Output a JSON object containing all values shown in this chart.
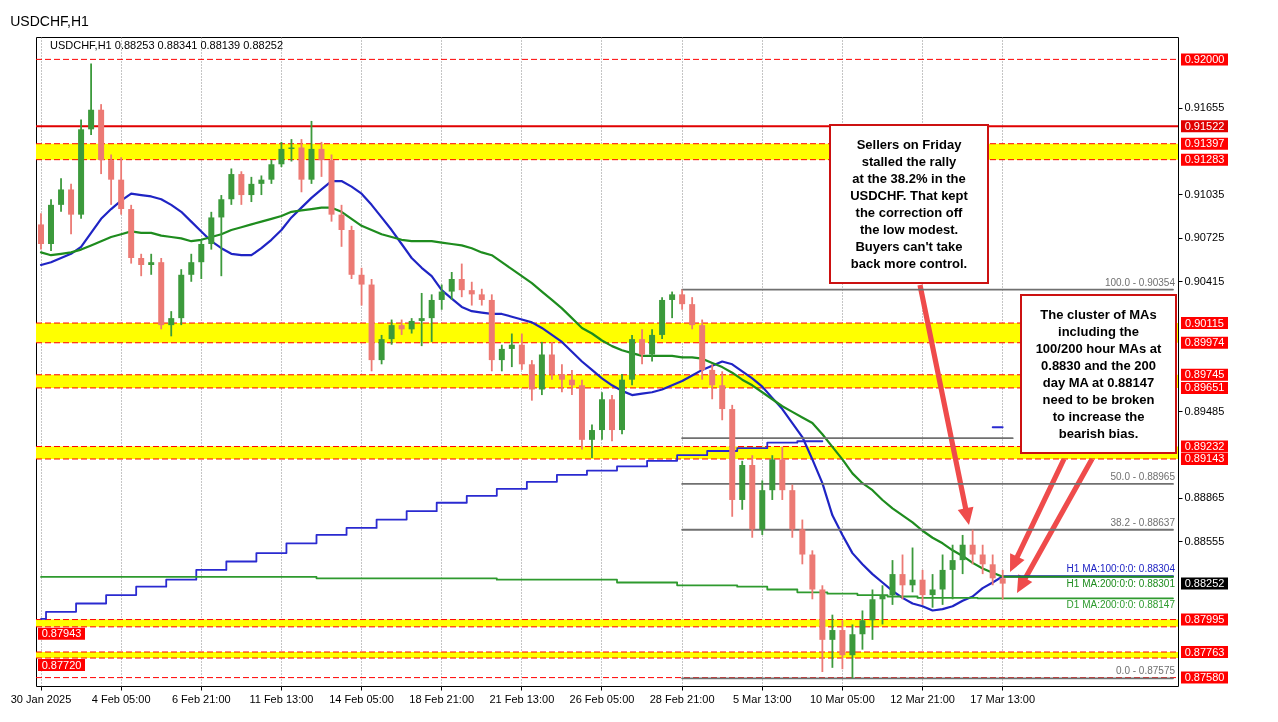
{
  "chart_data": {
    "type": "candlestick",
    "title": "USDCHF,H1",
    "subtitle": "USDCHF,H1  0.88253 0.88341 0.88139 0.88252",
    "categories": [
      "30 Jan 2025",
      null,
      null,
      null,
      null,
      null,
      null,
      null,
      "4 Feb 05:00",
      null,
      null,
      null,
      null,
      null,
      null,
      null,
      "6 Feb 21:00",
      null,
      null,
      null,
      null,
      null,
      null,
      null,
      "11 Feb 13:00",
      null,
      null,
      null,
      null,
      null,
      null,
      null,
      "14 Feb 05:00",
      null,
      null,
      null,
      null,
      null,
      null,
      null,
      "18 Feb 21:00",
      null,
      null,
      null,
      null,
      null,
      null,
      null,
      "21 Feb 13:00",
      null,
      null,
      null,
      null,
      null,
      null,
      null,
      "26 Feb 05:00",
      null,
      null,
      null,
      null,
      null,
      null,
      null,
      "28 Feb 21:00",
      null,
      null,
      null,
      null,
      null,
      null,
      null,
      "5 Mar 13:00",
      null,
      null,
      null,
      null,
      null,
      null,
      null,
      "10 Mar 05:00",
      null,
      null,
      null,
      null,
      null,
      null,
      null,
      "12 Mar 21:00",
      null,
      null,
      null,
      null,
      null,
      null,
      null,
      "17 Mar 13:00",
      null,
      null,
      null,
      null,
      null,
      null,
      null,
      null,
      null,
      null,
      null,
      null,
      null,
      null,
      null,
      null,
      null
    ],
    "ohlc": [
      [
        0.9082,
        0.909,
        0.9064,
        0.9068
      ],
      [
        0.9068,
        0.91,
        0.9063,
        0.9096
      ],
      [
        0.9096,
        0.9115,
        0.9091,
        0.9107
      ],
      [
        0.9107,
        0.9111,
        0.9075,
        0.9089
      ],
      [
        0.9089,
        0.9157,
        0.9086,
        0.915
      ],
      [
        0.915,
        0.9197,
        0.9146,
        0.9164
      ],
      [
        0.9164,
        0.9168,
        0.9118,
        0.9128
      ],
      [
        0.9128,
        0.9132,
        0.9096,
        0.9114
      ],
      [
        0.9114,
        0.913,
        0.9089,
        0.9093
      ],
      [
        0.9093,
        0.9096,
        0.9054,
        0.9058
      ],
      [
        0.9058,
        0.9061,
        0.9045,
        0.9053
      ],
      [
        0.9053,
        0.9061,
        0.9046,
        0.9055
      ],
      [
        0.9055,
        0.9058,
        0.9007,
        0.901
      ],
      [
        0.901,
        0.902,
        0.9002,
        0.9015
      ],
      [
        0.9015,
        0.905,
        0.901,
        0.9046
      ],
      [
        0.9046,
        0.9061,
        0.9041,
        0.9055
      ],
      [
        0.9055,
        0.9071,
        0.9043,
        0.9068
      ],
      [
        0.9068,
        0.9091,
        0.9064,
        0.9087
      ],
      [
        0.9087,
        0.9103,
        0.9045,
        0.91
      ],
      [
        0.91,
        0.9122,
        0.9096,
        0.9118
      ],
      [
        0.9118,
        0.912,
        0.9096,
        0.9103
      ],
      [
        0.9103,
        0.9116,
        0.9098,
        0.9111
      ],
      [
        0.9111,
        0.9117,
        0.9103,
        0.9114
      ],
      [
        0.9114,
        0.9128,
        0.9111,
        0.9125
      ],
      [
        0.9125,
        0.9141,
        0.9123,
        0.9136
      ],
      [
        0.9136,
        0.9143,
        0.9127,
        0.9137
      ],
      [
        0.9137,
        0.9143,
        0.9105,
        0.9114
      ],
      [
        0.9114,
        0.9156,
        0.9111,
        0.9136
      ],
      [
        0.9136,
        0.9141,
        0.9116,
        0.9128
      ],
      [
        0.9128,
        0.9132,
        0.9084,
        0.9089
      ],
      [
        0.9089,
        0.9096,
        0.9066,
        0.9078
      ],
      [
        0.9078,
        0.9081,
        0.9043,
        0.9046
      ],
      [
        0.9046,
        0.9051,
        0.9024,
        0.9039
      ],
      [
        0.9039,
        0.9043,
        0.8977,
        0.8985
      ],
      [
        0.8985,
        0.9003,
        0.8982,
        0.9
      ],
      [
        0.9,
        0.9014,
        0.8996,
        0.901
      ],
      [
        0.901,
        0.9014,
        0.9003,
        0.9007
      ],
      [
        0.9007,
        0.9015,
        0.9004,
        0.9013
      ],
      [
        0.9013,
        0.9033,
        0.8995,
        0.9015
      ],
      [
        0.9015,
        0.9032,
        0.8998,
        0.9028
      ],
      [
        0.9028,
        0.9039,
        0.9021,
        0.9034
      ],
      [
        0.9034,
        0.9048,
        0.9028,
        0.9043
      ],
      [
        0.9043,
        0.9054,
        0.903,
        0.9035
      ],
      [
        0.9035,
        0.9041,
        0.9024,
        0.9032
      ],
      [
        0.9032,
        0.9036,
        0.9024,
        0.9028
      ],
      [
        0.9028,
        0.9032,
        0.8977,
        0.8985
      ],
      [
        0.8985,
        0.8996,
        0.8977,
        0.8993
      ],
      [
        0.8993,
        0.9004,
        0.898,
        0.8996
      ],
      [
        0.8996,
        0.9004,
        0.8978,
        0.8982
      ],
      [
        0.8982,
        0.8985,
        0.8956,
        0.8964
      ],
      [
        0.8964,
        0.8998,
        0.896,
        0.8989
      ],
      [
        0.8989,
        0.8998,
        0.8971,
        0.8975
      ],
      [
        0.8975,
        0.8982,
        0.8962,
        0.8971
      ],
      [
        0.8971,
        0.8978,
        0.896,
        0.8967
      ],
      [
        0.8967,
        0.8971,
        0.8921,
        0.8928
      ],
      [
        0.8928,
        0.8939,
        0.8915,
        0.8935
      ],
      [
        0.8935,
        0.8962,
        0.8928,
        0.8957
      ],
      [
        0.8957,
        0.896,
        0.8927,
        0.8935
      ],
      [
        0.8935,
        0.8975,
        0.8932,
        0.8971
      ],
      [
        0.8971,
        0.9003,
        0.8967,
        0.9
      ],
      [
        0.9,
        0.9007,
        0.8982,
        0.8989
      ],
      [
        0.8989,
        0.9007,
        0.8984,
        0.9003
      ],
      [
        0.9003,
        0.903,
        0.9,
        0.9028
      ],
      [
        0.9028,
        0.9034,
        0.9015,
        0.9032
      ],
      [
        0.9032,
        0.90354,
        0.9021,
        0.9025
      ],
      [
        0.9025,
        0.903,
        0.9007,
        0.901
      ],
      [
        0.901,
        0.9014,
        0.8971,
        0.8978
      ],
      [
        0.8978,
        0.8982,
        0.8957,
        0.8967
      ],
      [
        0.8967,
        0.8977,
        0.8942,
        0.895
      ],
      [
        0.895,
        0.8953,
        0.8873,
        0.8885
      ],
      [
        0.8885,
        0.8913,
        0.8878,
        0.891
      ],
      [
        0.891,
        0.8917,
        0.8858,
        0.8864
      ],
      [
        0.8864,
        0.8899,
        0.886,
        0.8892
      ],
      [
        0.8892,
        0.8917,
        0.8885,
        0.8914
      ],
      [
        0.8914,
        0.8923,
        0.8885,
        0.8892
      ],
      [
        0.8892,
        0.8896,
        0.8858,
        0.8864
      ],
      [
        0.8864,
        0.8871,
        0.8839,
        0.8846
      ],
      [
        0.8846,
        0.8849,
        0.8814,
        0.8821
      ],
      [
        0.8821,
        0.8824,
        0.8762,
        0.8785
      ],
      [
        0.8785,
        0.8803,
        0.8765,
        0.8792
      ],
      [
        0.8792,
        0.8799,
        0.8764,
        0.8774
      ],
      [
        0.8774,
        0.8796,
        0.87575,
        0.8789
      ],
      [
        0.8789,
        0.8806,
        0.8778,
        0.8799
      ],
      [
        0.8799,
        0.8821,
        0.8785,
        0.8814
      ],
      [
        0.8814,
        0.8824,
        0.8796,
        0.8817
      ],
      [
        0.8817,
        0.8842,
        0.881,
        0.8832
      ],
      [
        0.8832,
        0.8846,
        0.8814,
        0.8824
      ],
      [
        0.8824,
        0.8851,
        0.8819,
        0.8828
      ],
      [
        0.8828,
        0.8835,
        0.881,
        0.8817
      ],
      [
        0.8817,
        0.8832,
        0.8808,
        0.8821
      ],
      [
        0.8821,
        0.8846,
        0.881,
        0.8835
      ],
      [
        0.8835,
        0.8853,
        0.8814,
        0.8842
      ],
      [
        0.8842,
        0.886,
        0.8832,
        0.8853
      ],
      [
        0.8853,
        0.88637,
        0.8839,
        0.8846
      ],
      [
        0.8846,
        0.8853,
        0.8832,
        0.8839
      ],
      [
        0.8839,
        0.8846,
        0.8824,
        0.8829
      ],
      [
        0.8829,
        0.8835,
        0.88139,
        0.88252
      ],
      null,
      null,
      null,
      null,
      null,
      null,
      null,
      null,
      null,
      null,
      null,
      null,
      null,
      null,
      null,
      null,
      null
    ],
    "colors": [
      "#ec7a74",
      "#3c9a3c",
      "#3c9a3c",
      "#ec7a74",
      "#3c9a3c",
      "#3c9a3c",
      "#ec7a74",
      "#ec7a74",
      "#ec7a74",
      "#ec7a74",
      "#ec7a74",
      "#3c9a3c",
      "#ec7a74",
      "#3c9a3c",
      "#3c9a3c",
      "#3c9a3c",
      "#3c9a3c",
      "#3c9a3c",
      "#3c9a3c",
      "#3c9a3c",
      "#ec7a74",
      "#3c9a3c",
      "#3c9a3c",
      "#3c9a3c",
      "#3c9a3c",
      "#3c9a3c",
      "#ec7a74",
      "#3c9a3c",
      "#ec7a74",
      "#ec7a74",
      "#ec7a74",
      "#ec7a74",
      "#ec7a74",
      "#ec7a74",
      "#3c9a3c",
      "#3c9a3c",
      "#ec7a74",
      "#3c9a3c",
      "#3c9a3c",
      "#3c9a3c",
      "#3c9a3c",
      "#3c9a3c",
      "#ec7a74",
      "#ec7a74",
      "#ec7a74",
      "#ec7a74",
      "#3c9a3c",
      "#3c9a3c",
      "#ec7a74",
      "#ec7a74",
      "#3c9a3c",
      "#ec7a74",
      "#ec7a74",
      "#ec7a74",
      "#ec7a74",
      "#3c9a3c",
      "#3c9a3c",
      "#ec7a74",
      "#3c9a3c",
      "#3c9a3c",
      "#ec7a74",
      "#3c9a3c",
      "#3c9a3c",
      "#3c9a3c",
      "#ec7a74",
      "#ec7a74",
      "#ec7a74",
      "#ec7a74",
      "#ec7a74",
      "#ec7a74",
      "#3c9a3c",
      "#ec7a74",
      "#3c9a3c",
      "#3c9a3c",
      "#ec7a74",
      "#ec7a74",
      "#ec7a74",
      "#ec7a74",
      "#ec7a74",
      "#3c9a3c",
      "#ec7a74",
      "#3c9a3c",
      "#3c9a3c",
      "#3c9a3c",
      "#3c9a3c",
      "#3c9a3c",
      "#ec7a74",
      "#3c9a3c",
      "#ec7a74",
      "#3c9a3c",
      "#3c9a3c",
      "#3c9a3c",
      "#3c9a3c",
      "#ec7a74",
      "#ec7a74",
      "#ec7a74",
      "#ec7a74",
      null,
      null,
      null,
      null,
      null,
      null,
      null,
      null,
      null,
      null,
      null,
      null,
      null,
      null,
      null,
      null,
      null
    ],
    "series": [
      {
        "type": "line",
        "name": "H1 MA:100:0:0: 0.88304",
        "color": "#1f24c4",
        "values": [
          0.9053,
          0.9055,
          0.9058,
          0.9061,
          0.9066,
          0.9076,
          0.9086,
          0.9093,
          0.9099,
          0.9104,
          0.9103,
          0.9102,
          0.91,
          0.9096,
          0.9091,
          0.9084,
          0.9077,
          0.907,
          0.9065,
          0.9061,
          0.906,
          0.906,
          0.9065,
          0.9071,
          0.9078,
          0.9087,
          0.9094,
          0.9101,
          0.9107,
          0.9113,
          0.9113,
          0.9109,
          0.9104,
          0.9096,
          0.9087,
          0.9078,
          0.9068,
          0.9058,
          0.9051,
          0.9045,
          0.9035,
          0.9029,
          0.9023,
          0.902,
          0.9019,
          0.9018,
          0.9018,
          0.9016,
          0.9014,
          0.9012,
          0.9008,
          0.9003,
          0.8998,
          0.8991,
          0.8984,
          0.8978,
          0.8972,
          0.8967,
          0.8963,
          0.896,
          0.8961,
          0.8962,
          0.8964,
          0.8967,
          0.897,
          0.8974,
          0.8978,
          0.8981,
          0.8984,
          0.8982,
          0.8977,
          0.8972,
          0.8966,
          0.8958,
          0.895,
          0.894,
          0.893,
          0.8914,
          0.8897,
          0.8874,
          0.886,
          0.8847,
          0.8839,
          0.8832,
          0.8826,
          0.882,
          0.8815,
          0.8811,
          0.8809,
          0.8806,
          0.8807,
          0.8809,
          0.8813,
          0.8816,
          0.8822,
          0.8826,
          0.88304,
          0.88304,
          0.88304,
          0.88304,
          0.88304,
          0.88304,
          0.88304,
          0.88304,
          0.88304,
          0.88304,
          0.88304,
          0.88304,
          0.88304,
          0.88304,
          0.88304,
          0.88304,
          0.88304,
          0.88304
        ]
      },
      {
        "type": "line",
        "name": "H1 MA:200:0:0: 0.88301",
        "color": "#1e8c1e",
        "values": [
          0.9062,
          0.906,
          0.9061,
          0.9062,
          0.9064,
          0.9067,
          0.907,
          0.9073,
          0.9075,
          0.9077,
          0.9076,
          0.9076,
          0.9074,
          0.9073,
          0.9072,
          0.907,
          0.9071,
          0.9073,
          0.9075,
          0.9078,
          0.908,
          0.9082,
          0.9084,
          0.9086,
          0.9088,
          0.9091,
          0.9092,
          0.9093,
          0.9094,
          0.9094,
          0.9091,
          0.9086,
          0.9081,
          0.9078,
          0.9075,
          0.9073,
          0.9071,
          0.907,
          0.907,
          0.907,
          0.9069,
          0.9068,
          0.9067,
          0.9065,
          0.9062,
          0.906,
          0.9055,
          0.905,
          0.9045,
          0.904,
          0.9034,
          0.9028,
          0.9022,
          0.9015,
          0.9008,
          0.9004,
          0.8999,
          0.8995,
          0.8992,
          0.899,
          0.8988,
          0.8988,
          0.8988,
          0.8988,
          0.8987,
          0.8987,
          0.8986,
          0.8983,
          0.898,
          0.8976,
          0.8971,
          0.8967,
          0.8962,
          0.8957,
          0.8952,
          0.8948,
          0.8944,
          0.894,
          0.8932,
          0.8923,
          0.8914,
          0.8904,
          0.8897,
          0.8892,
          0.8885,
          0.8879,
          0.8874,
          0.8869,
          0.8863,
          0.8858,
          0.8854,
          0.8849,
          0.8845,
          0.884,
          0.8836,
          0.8833,
          0.88301,
          0.88301,
          0.88301,
          0.88301,
          0.88301,
          0.88301,
          0.88301,
          0.88301,
          0.88301,
          0.88301,
          0.88301,
          0.88301,
          0.88301,
          0.88301,
          0.88301,
          0.88301,
          0.88301,
          0.88301
        ]
      },
      {
        "type": "step",
        "color": "#2a2ad0",
        "values": [
          0.88,
          0.8805,
          0.8805,
          0.8805,
          0.8811,
          0.8811,
          0.8811,
          0.8817,
          0.8817,
          0.8817,
          0.8823,
          0.8823,
          0.8823,
          0.8828,
          0.8828,
          0.8828,
          0.8835,
          0.8835,
          0.8835,
          0.8841,
          0.8841,
          0.8841,
          0.8847,
          0.8847,
          0.8847,
          0.8854,
          0.8854,
          0.8854,
          0.886,
          0.886,
          0.886,
          0.8865,
          0.8865,
          0.8865,
          0.8871,
          0.8871,
          0.8871,
          0.8877,
          0.8877,
          0.8877,
          0.8883,
          0.8883,
          0.8883,
          0.8888,
          0.8888,
          0.8888,
          0.8893,
          0.8893,
          0.8893,
          0.8898,
          0.8898,
          0.8898,
          0.8903,
          0.8903,
          0.8903,
          0.8906,
          0.8906,
          0.8906,
          0.8909,
          0.8909,
          0.8909,
          0.8913,
          0.8913,
          0.8913,
          0.8917,
          0.8917,
          0.8917,
          0.892,
          0.892,
          0.892,
          0.8922,
          0.8922,
          0.8922,
          0.8926,
          0.8926,
          0.8926,
          0.8927,
          0.8927,
          0.8927,
          null,
          null,
          null,
          null,
          null,
          null,
          null,
          null,
          null,
          null,
          null,
          null,
          null,
          null,
          null,
          null,
          0.8937,
          0.8937,
          null,
          null,
          null,
          null,
          null,
          null,
          null,
          null,
          null,
          null,
          null,
          null,
          null,
          null,
          null,
          null,
          null
        ]
      },
      {
        "type": "step",
        "name": "D1 MA:200:0:0: 0.88147",
        "color": "#2e9a2e",
        "values": [
          0.883,
          0.883,
          0.883,
          0.883,
          0.883,
          0.883,
          0.883,
          0.883,
          0.883,
          0.883,
          0.883,
          0.883,
          0.883,
          0.883,
          0.883,
          0.883,
          0.883,
          0.883,
          0.883,
          0.883,
          0.883,
          0.883,
          0.883,
          0.883,
          0.883,
          0.883,
          0.883,
          0.883,
          0.8829,
          0.8829,
          0.8829,
          0.8829,
          0.8829,
          0.8829,
          0.8829,
          0.8829,
          0.8829,
          0.8829,
          0.8829,
          0.8829,
          0.8829,
          0.8829,
          0.8829,
          0.8829,
          0.8829,
          0.8829,
          0.8828,
          0.8828,
          0.8828,
          0.8828,
          0.8828,
          0.8828,
          0.8828,
          0.8828,
          0.8828,
          0.8828,
          0.8828,
          0.8828,
          0.8826,
          0.8826,
          0.8826,
          0.8826,
          0.8826,
          0.8826,
          0.8824,
          0.8824,
          0.8824,
          0.8824,
          0.8824,
          0.8824,
          0.8823,
          0.8823,
          0.8823,
          0.8821,
          0.8821,
          0.8821,
          0.8819,
          0.8819,
          0.8819,
          0.8818,
          0.8818,
          0.8818,
          0.8817,
          0.8817,
          0.8817,
          0.8816,
          0.8816,
          0.8816,
          0.8815,
          0.8815,
          0.8815,
          0.8815,
          0.8815,
          0.8815,
          0.88147,
          0.88147,
          0.88147,
          0.88147,
          0.88147,
          0.88147,
          0.88147,
          0.88147,
          0.88147,
          0.88147,
          0.88147,
          0.88147,
          0.88147,
          0.88147,
          0.88147,
          0.88147,
          0.88147,
          0.88147,
          0.88147,
          0.88147
        ]
      },
      {
        "type": "step",
        "name": "100.0 - 0.90354",
        "color": "#707070",
        "values": [
          null,
          null,
          null,
          null,
          null,
          null,
          null,
          null,
          null,
          null,
          null,
          null,
          null,
          null,
          null,
          null,
          null,
          null,
          null,
          null,
          null,
          null,
          null,
          null,
          null,
          null,
          null,
          null,
          null,
          null,
          null,
          null,
          null,
          null,
          null,
          null,
          null,
          null,
          null,
          null,
          null,
          null,
          null,
          null,
          null,
          null,
          null,
          null,
          null,
          null,
          null,
          null,
          null,
          null,
          null,
          null,
          null,
          null,
          null,
          null,
          null,
          null,
          null,
          null,
          0.90354,
          0.90354,
          0.90354,
          0.90354,
          0.90354,
          0.90354,
          0.90354,
          0.90354,
          0.90354,
          0.90354,
          0.90354,
          0.90354,
          0.90354,
          0.90354,
          0.90354,
          0.90354,
          0.90354,
          0.90354,
          0.90354,
          0.90354,
          0.90354,
          0.90354,
          0.90354,
          0.90354,
          0.90354,
          0.90354,
          0.90354,
          0.90354,
          0.90354,
          0.90354,
          0.90354,
          0.90354,
          0.90354,
          0.90354,
          0.90354,
          0.90354,
          0.90354,
          0.90354,
          0.90354,
          0.90354,
          0.90354,
          0.90354,
          0.90354,
          0.90354,
          0.90354,
          0.90354,
          0.90354,
          0.90354,
          0.90354,
          0.90354
        ]
      },
      {
        "type": "step",
        "color": "#707070",
        "values": [
          null,
          null,
          null,
          null,
          null,
          null,
          null,
          null,
          null,
          null,
          null,
          null,
          null,
          null,
          null,
          null,
          null,
          null,
          null,
          null,
          null,
          null,
          null,
          null,
          null,
          null,
          null,
          null,
          null,
          null,
          null,
          null,
          null,
          null,
          null,
          null,
          null,
          null,
          null,
          null,
          null,
          null,
          null,
          null,
          null,
          null,
          null,
          null,
          null,
          null,
          null,
          null,
          null,
          null,
          null,
          null,
          null,
          null,
          null,
          null,
          null,
          null,
          null,
          null,
          0.89292,
          0.89292,
          0.89292,
          0.89292,
          0.89292,
          0.89292,
          0.89292,
          0.89292,
          0.89292,
          0.89292,
          0.89292,
          0.89292,
          0.89292,
          0.89292,
          0.89292,
          0.89292,
          0.89292,
          0.89292,
          0.89292,
          0.89292,
          0.89292,
          0.89292,
          0.89292,
          0.89292,
          0.89292,
          0.89292,
          0.89292,
          0.89292,
          0.89292,
          0.89292,
          0.89292,
          0.89292,
          0.89292,
          0.89292,
          null,
          null,
          null,
          null,
          null,
          null,
          null,
          null,
          null,
          null,
          null,
          null,
          null,
          null,
          null,
          null
        ]
      },
      {
        "type": "step",
        "name": "50.0 - 0.88965",
        "color": "#707070",
        "values": [
          null,
          null,
          null,
          null,
          null,
          null,
          null,
          null,
          null,
          null,
          null,
          null,
          null,
          null,
          null,
          null,
          null,
          null,
          null,
          null,
          null,
          null,
          null,
          null,
          null,
          null,
          null,
          null,
          null,
          null,
          null,
          null,
          null,
          null,
          null,
          null,
          null,
          null,
          null,
          null,
          null,
          null,
          null,
          null,
          null,
          null,
          null,
          null,
          null,
          null,
          null,
          null,
          null,
          null,
          null,
          null,
          null,
          null,
          null,
          null,
          null,
          null,
          null,
          null,
          0.88965,
          0.88965,
          0.88965,
          0.88965,
          0.88965,
          0.88965,
          0.88965,
          0.88965,
          0.88965,
          0.88965,
          0.88965,
          0.88965,
          0.88965,
          0.88965,
          0.88965,
          0.88965,
          0.88965,
          0.88965,
          0.88965,
          0.88965,
          0.88965,
          0.88965,
          0.88965,
          0.88965,
          0.88965,
          0.88965,
          0.88965,
          0.88965,
          0.88965,
          0.88965,
          0.88965,
          0.88965,
          0.88965,
          0.88965,
          0.88965,
          0.88965,
          0.88965,
          0.88965,
          0.88965,
          0.88965,
          0.88965,
          0.88965,
          0.88965,
          0.88965,
          0.88965,
          0.88965,
          0.88965,
          0.88965,
          0.88965,
          0.88965
        ]
      },
      {
        "type": "step",
        "name": "38.2 - 0.88637",
        "color": "#707070",
        "values": [
          null,
          null,
          null,
          null,
          null,
          null,
          null,
          null,
          null,
          null,
          null,
          null,
          null,
          null,
          null,
          null,
          null,
          null,
          null,
          null,
          null,
          null,
          null,
          null,
          null,
          null,
          null,
          null,
          null,
          null,
          null,
          null,
          null,
          null,
          null,
          null,
          null,
          null,
          null,
          null,
          null,
          null,
          null,
          null,
          null,
          null,
          null,
          null,
          null,
          null,
          null,
          null,
          null,
          null,
          null,
          null,
          null,
          null,
          null,
          null,
          null,
          null,
          null,
          null,
          0.88637,
          0.88637,
          0.88637,
          0.88637,
          0.88637,
          0.88637,
          0.88637,
          0.88637,
          0.88637,
          0.88637,
          0.88637,
          0.88637,
          0.88637,
          0.88637,
          0.88637,
          0.88637,
          0.88637,
          0.88637,
          0.88637,
          0.88637,
          0.88637,
          0.88637,
          0.88637,
          0.88637,
          0.88637,
          0.88637,
          0.88637,
          0.88637,
          0.88637,
          0.88637,
          0.88637,
          0.88637,
          0.88637,
          0.88637,
          0.88637,
          0.88637,
          0.88637,
          0.88637,
          0.88637,
          0.88637,
          0.88637,
          0.88637,
          0.88637,
          0.88637,
          0.88637,
          0.88637,
          0.88637,
          0.88637,
          0.88637,
          0.88637
        ]
      },
      {
        "type": "step",
        "name": "0.0 - 0.87575",
        "color": "#707070",
        "values": [
          null,
          null,
          null,
          null,
          null,
          null,
          null,
          null,
          null,
          null,
          null,
          null,
          null,
          null,
          null,
          null,
          null,
          null,
          null,
          null,
          null,
          null,
          null,
          null,
          null,
          null,
          null,
          null,
          null,
          null,
          null,
          null,
          null,
          null,
          null,
          null,
          null,
          null,
          null,
          null,
          null,
          null,
          null,
          null,
          null,
          null,
          null,
          null,
          null,
          null,
          null,
          null,
          null,
          null,
          null,
          null,
          null,
          null,
          null,
          null,
          null,
          null,
          null,
          null,
          0.87575,
          0.87575,
          0.87575,
          0.87575,
          0.87575,
          0.87575,
          0.87575,
          0.87575,
          0.87575,
          0.87575,
          0.87575,
          0.87575,
          0.87575,
          0.87575,
          0.87575,
          0.87575,
          0.87575,
          0.87575,
          0.87575,
          0.87575,
          0.87575,
          0.87575,
          0.87575,
          0.87575,
          0.87575,
          0.87575,
          0.87575,
          0.87575,
          0.87575,
          0.87575,
          0.87575,
          0.87575,
          0.87575,
          0.87575,
          0.87575,
          0.87575,
          0.87575,
          0.87575,
          0.87575,
          0.87575,
          0.87575,
          0.87575,
          0.87575,
          0.87575,
          0.87575,
          0.87575,
          0.87575,
          0.87575,
          0.87575,
          0.87575
        ]
      }
    ],
    "ylim": [
      0.8752,
      0.9216
    ],
    "yticks": [
      0.91655,
      0.91035,
      0.90725,
      0.90415,
      0.89485,
      0.88865,
      0.88555
    ],
    "grid": "x",
    "bands": [
      {
        "axis": "y",
        "from": 0.91283,
        "to": 0.91397,
        "color": "#ffff00"
      },
      {
        "axis": "y",
        "from": 0.89974,
        "to": 0.90115,
        "color": "#ffff00"
      },
      {
        "axis": "y",
        "from": 0.89651,
        "to": 0.89745,
        "color": "#ffff00"
      },
      {
        "axis": "y",
        "from": 0.89143,
        "to": 0.89232,
        "color": "#ffff00"
      },
      {
        "axis": "y",
        "from": 0.87943,
        "to": 0.87995,
        "color": "#ffff00"
      },
      {
        "axis": "y",
        "from": 0.8772,
        "to": 0.87763,
        "color": "#ffff00"
      }
    ],
    "ref_lines": [
      {
        "axis": "y",
        "value": 0.92,
        "label": "0.92000",
        "color": "#ff0000",
        "line_style": "dashed"
      },
      {
        "axis": "y",
        "value": 0.91522,
        "label": "0.91522",
        "color": "#e00000",
        "line_style": "solid"
      },
      {
        "axis": "y",
        "value": 0.91397,
        "label": "0.91397",
        "color": "#ff0000",
        "line_style": "dashed"
      },
      {
        "axis": "y",
        "value": 0.91283,
        "label": "0.91283",
        "color": "#ff0000",
        "line_style": "dashed"
      },
      {
        "axis": "y",
        "value": 0.90115,
        "label": "0.90115",
        "color": "#ff0000",
        "line_style": "dashed"
      },
      {
        "axis": "y",
        "value": 0.89974,
        "label": "0.89974",
        "color": "#ff0000",
        "line_style": "dashed"
      },
      {
        "axis": "y",
        "value": 0.89745,
        "label": "0.89745",
        "color": "#ff0000",
        "line_style": "dashed"
      },
      {
        "axis": "y",
        "value": 0.89651,
        "label": "0.89651",
        "color": "#ff0000",
        "line_style": "dashed"
      },
      {
        "axis": "y",
        "value": 0.89232,
        "label": "0.89232",
        "color": "#ff0000",
        "line_style": "dashed"
      },
      {
        "axis": "y",
        "value": 0.89143,
        "label": "0.89143",
        "color": "#ff0000",
        "line_style": "dashed"
      },
      {
        "axis": "y",
        "value": 0.87995,
        "label": "0.87995",
        "color": "#ff0000",
        "line_style": "dashed"
      },
      {
        "axis": "y",
        "value": 0.87943,
        "label": "0.87943",
        "color": "#ff0000",
        "line_style": "dashed"
      },
      {
        "axis": "y",
        "value": 0.87763,
        "label": "0.87763",
        "color": "#ff0000",
        "line_style": "dashed"
      },
      {
        "axis": "y",
        "value": 0.8772,
        "label": "0.87720",
        "color": "#ff0000",
        "line_style": "dashed"
      },
      {
        "axis": "y",
        "value": 0.8758,
        "label": "0.87580",
        "color": "#ff0000",
        "line_style": "dashed"
      }
    ],
    "annotations": [
      "Sellers on Friday stalled the rally at the 38.2% in the USDCHF. That kept the correction off the low modest.  Buyers can't take back more control.",
      "The cluster of MAs including the 100/200 hour MAs at 0.8830 and the 200 day MA at 0.88147 need to be broken to increase the bearish bias.",
      "0.88252"
    ]
  }
}
